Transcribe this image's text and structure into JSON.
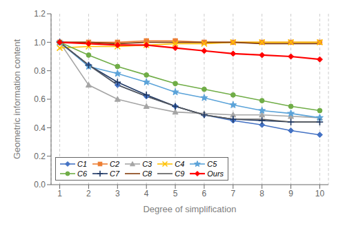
{
  "chart_data": {
    "type": "line",
    "xlabel": "Degree of simplification",
    "ylabel": "Geometric information content",
    "x": [
      1,
      2,
      3,
      4,
      5,
      6,
      7,
      8,
      9,
      10
    ],
    "xlim": [
      0.7,
      10.3
    ],
    "ylim": [
      0,
      1.2
    ],
    "xticks": [
      1,
      2,
      3,
      4,
      5,
      6,
      7,
      8,
      9,
      10
    ],
    "yticks": [
      {
        "value": 0,
        "label": "0.0"
      },
      0.2,
      0.4,
      0.6,
      0.8,
      {
        "value": 1,
        "label": "1.0"
      },
      1.2
    ],
    "grid": "x",
    "legend": "lower left",
    "series": [
      {
        "name": "C1",
        "color": "#4472C4",
        "marker": "diamond",
        "values": [
          1.0,
          0.84,
          0.7,
          0.62,
          0.55,
          0.49,
          0.45,
          0.42,
          0.38,
          0.35
        ]
      },
      {
        "name": "C2",
        "color": "#ED7D31",
        "marker": "square",
        "values": [
          1.0,
          1.0,
          1.0,
          1.01,
          1.01,
          1.0,
          1.0,
          1.0,
          1.0,
          1.0
        ]
      },
      {
        "name": "C3",
        "color": "#A5A5A5",
        "marker": "triangle",
        "values": [
          1.0,
          0.7,
          0.6,
          0.55,
          0.51,
          0.5,
          0.49,
          0.49,
          0.48,
          0.47
        ]
      },
      {
        "name": "C4",
        "color": "#FFC000",
        "marker": "x",
        "values": [
          0.96,
          0.97,
          0.97,
          0.98,
          0.99,
          0.99,
          1.0,
          1.0,
          1.0,
          1.0
        ]
      },
      {
        "name": "C5",
        "color": "#5BA3D9",
        "marker": "star",
        "values": [
          1.0,
          0.83,
          0.78,
          0.72,
          0.65,
          0.61,
          0.56,
          0.52,
          0.5,
          0.47
        ]
      },
      {
        "name": "C6",
        "color": "#70AD47",
        "marker": "circle",
        "values": [
          1.0,
          0.91,
          0.83,
          0.77,
          0.71,
          0.67,
          0.63,
          0.59,
          0.55,
          0.52
        ]
      },
      {
        "name": "C7",
        "color": "#1F3864",
        "marker": "plus",
        "values": [
          1.0,
          0.84,
          0.72,
          0.63,
          0.55,
          0.49,
          0.46,
          0.45,
          0.44,
          0.44
        ]
      },
      {
        "name": "C8",
        "color": "#843C0C",
        "marker": "none",
        "values": [
          1.0,
          1.0,
          0.99,
          1.0,
          1.0,
          1.0,
          1.0,
          0.99,
          0.99,
          0.99
        ]
      },
      {
        "name": "C9",
        "color": "#595959",
        "marker": "none",
        "values": [
          1.0,
          0.84,
          0.7,
          0.62,
          0.55,
          0.49,
          0.46,
          0.46,
          0.44,
          0.44
        ]
      },
      {
        "name": "Ours",
        "color": "#FF0000",
        "marker": "diamond",
        "values": [
          1.0,
          0.99,
          0.98,
          0.98,
          0.96,
          0.94,
          0.92,
          0.91,
          0.9,
          0.88
        ]
      }
    ]
  }
}
